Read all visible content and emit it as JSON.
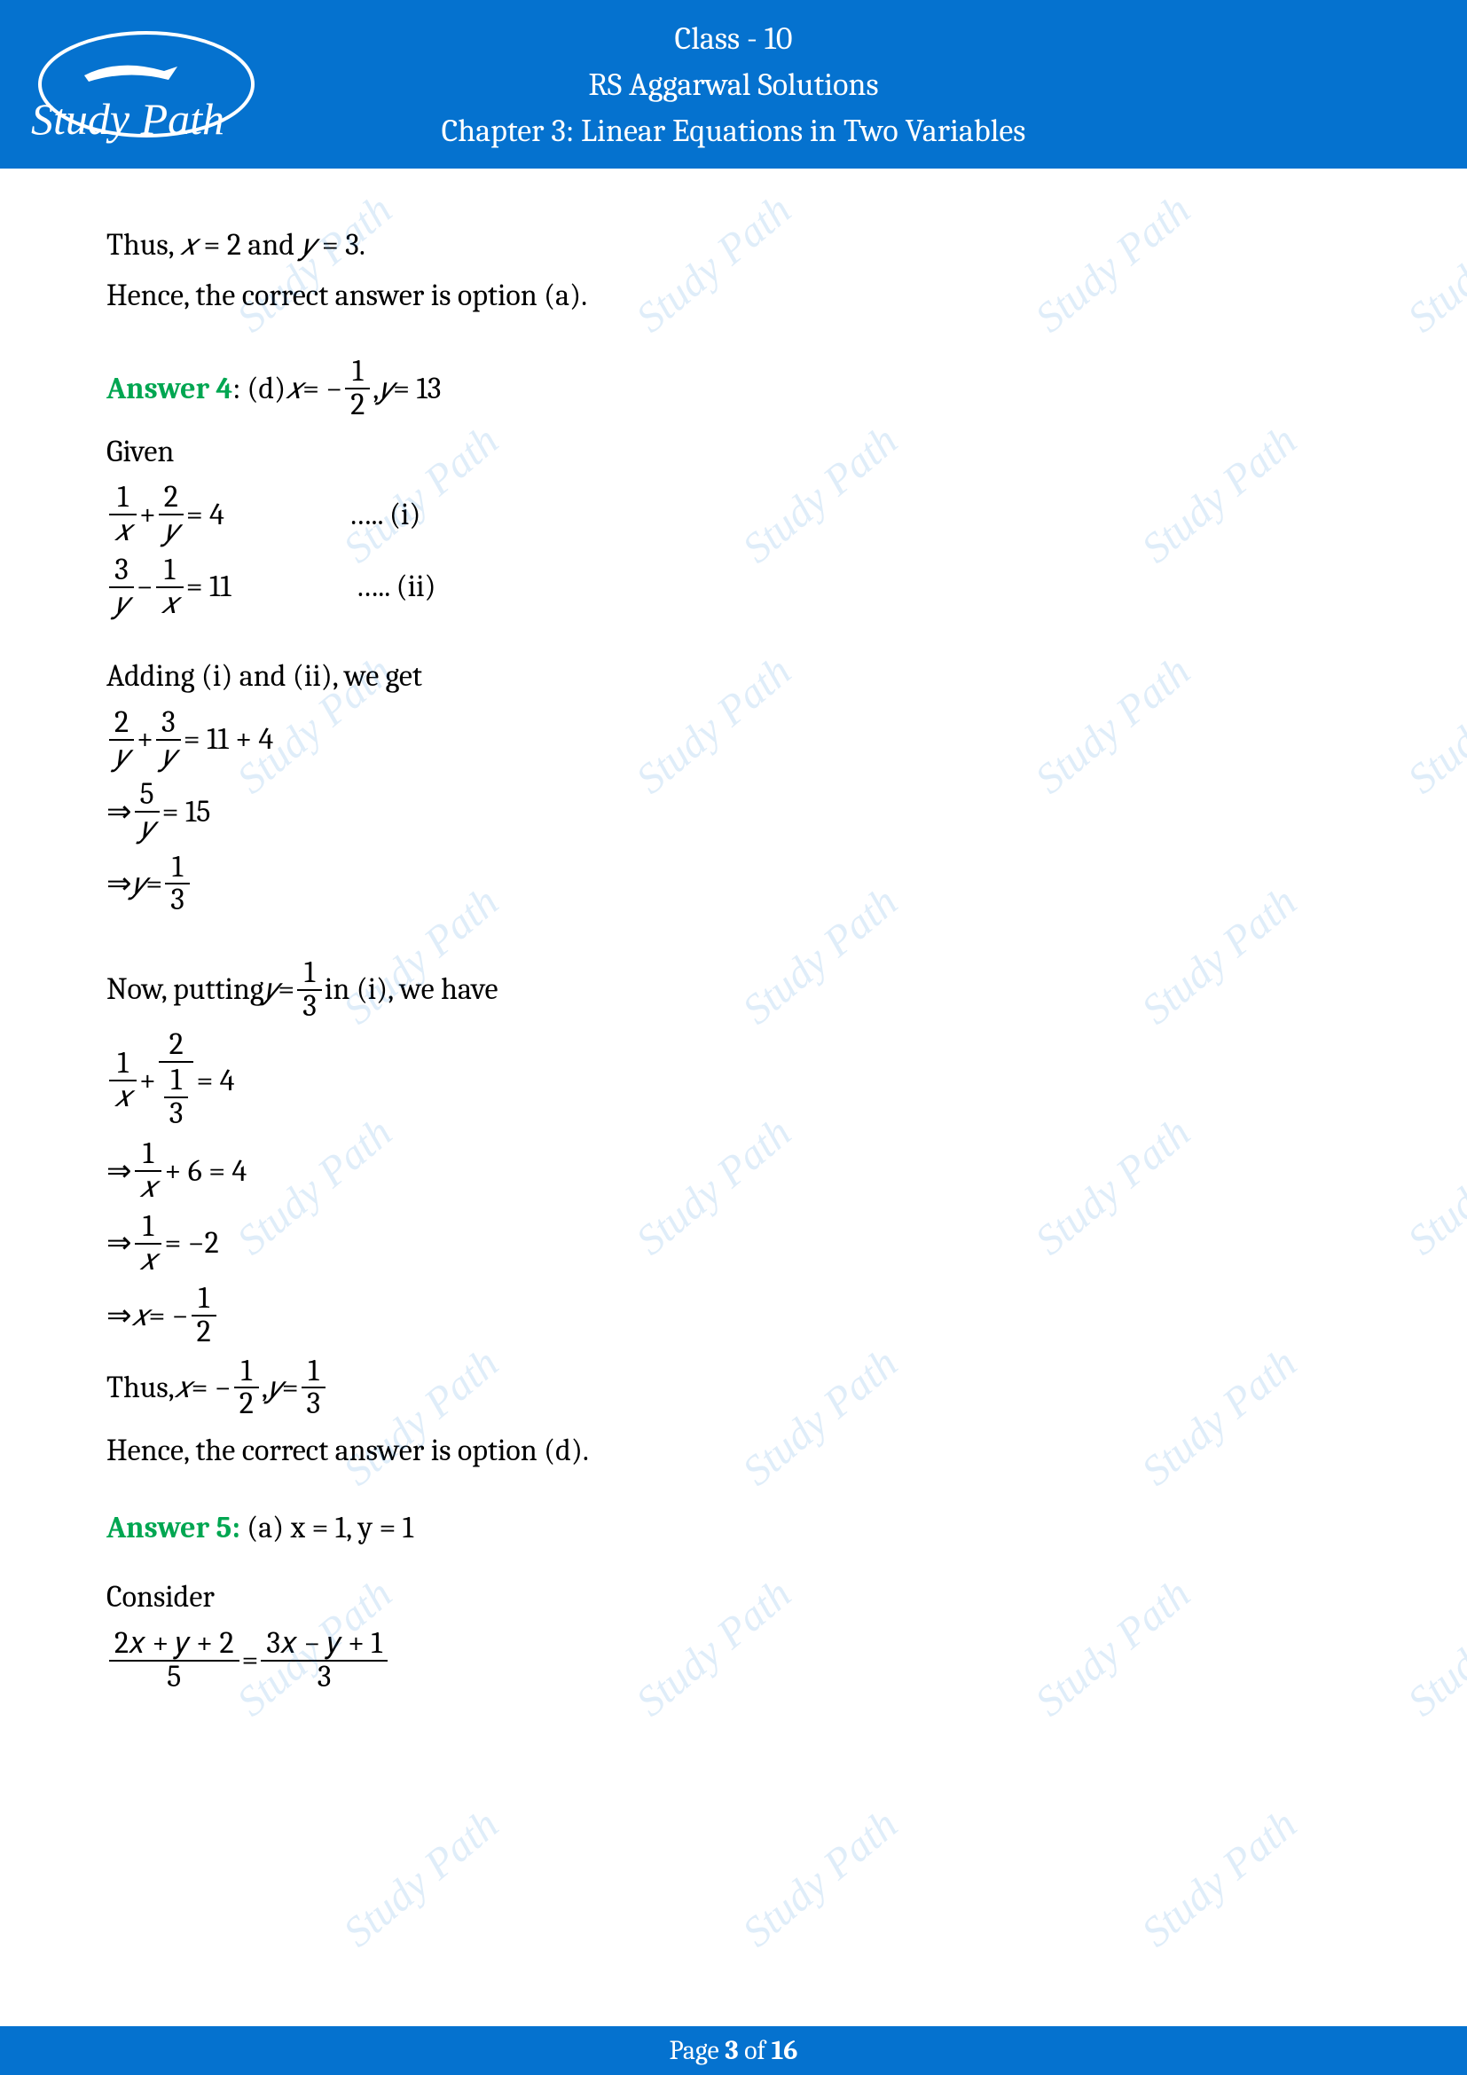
{
  "header": {
    "line1": "Class - 10",
    "line2": "RS Aggarwal Solutions",
    "line3": "Chapter 3: Linear Equations in Two Variables",
    "logo_text": "Study Path",
    "bg_color": "#0572cf",
    "text_color": "#ffffff"
  },
  "watermark": {
    "text": "Study Path",
    "color": "rgba(5,114,207,0.13)"
  },
  "body": {
    "intro1_a": "Thus, ",
    "intro1_b": " = 2 and ",
    "intro1_c": " = 3.",
    "intro2": "Hence, the correct answer is option (a).",
    "ans4_label": "Answer 4",
    "ans4_opt": ": (d) ",
    "ans4_x": " = −",
    "ans4_comma": ", ",
    "ans4_yval": " = 13",
    "given": "Given",
    "eq_i_rhs": " = 4",
    "eq_i_tag": "….. (i)",
    "eq_ii_rhs": " = 11",
    "eq_ii_tag": "….. (ii)",
    "adding": "Adding (i) and (ii), we get",
    "add_rhs": " = 11 + 4",
    "arrow": "⇒ ",
    "five_y_rhs": " = 15",
    "y_eq": " = ",
    "now_putting_a": "Now, putting ",
    "now_putting_b": " in (i), we have",
    "eq4_rhs": " = 4",
    "plus6": " + 6 = 4",
    "eq_neg2": " = −2",
    "x_eq_neg": " = −",
    "thus_a": "Thus, ",
    "thus_b": " = −",
    "thus_c": ", ",
    "thus_d": " = ",
    "hence_d": "Hence, the correct answer is option (d).",
    "ans5_label": "Answer 5:",
    "ans5_rest": " (a) x = 1, y = 1",
    "consider": "Consider",
    "frac_5_num": "2𝑥 + 𝑦 + 2",
    "frac_5_den": "5",
    "frac_3_num": "3𝑥 − 𝑦 + 1",
    "frac_3_den": "3",
    "eq_sign": " = ",
    "plus": " + ",
    "minus": " − ",
    "n1": "1",
    "n2": "2",
    "n3": "3",
    "n5": "5",
    "vx": "𝑥",
    "vy": "𝑦"
  },
  "footer": {
    "prefix": "Page ",
    "num": "3",
    "suffix": " of ",
    "total": "16"
  }
}
